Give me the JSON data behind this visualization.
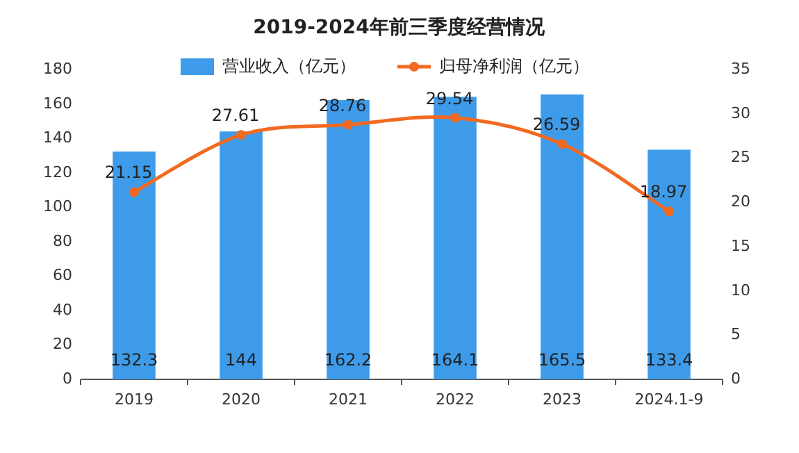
{
  "chart_data": {
    "type": "bar",
    "title": "2019-2024年前三季度经营情况",
    "categories": [
      "2019",
      "2020",
      "2021",
      "2022",
      "2023",
      "2024.1-9"
    ],
    "series": [
      {
        "name": "营业收入（亿元）",
        "color": "#3d9be9",
        "values": [
          132.3,
          144,
          162.2,
          164.1,
          165.5,
          133.4
        ]
      },
      {
        "name": "归母净利润（亿元）",
        "type": "line",
        "axis": "y2",
        "color": "#f26a21",
        "values": [
          21.15,
          27.61,
          28.76,
          29.54,
          26.59,
          18.97
        ]
      }
    ],
    "ylim": [
      0,
      180
    ],
    "yticks": [
      0,
      20,
      40,
      60,
      80,
      100,
      120,
      140,
      160,
      180
    ],
    "y2lim": [
      0,
      35
    ],
    "y2ticks": [
      0,
      5,
      10,
      15,
      20,
      25,
      30,
      35
    ],
    "data_labels": true,
    "legend": "top",
    "grid": false,
    "marker": "circle",
    "line_style": "solid"
  }
}
